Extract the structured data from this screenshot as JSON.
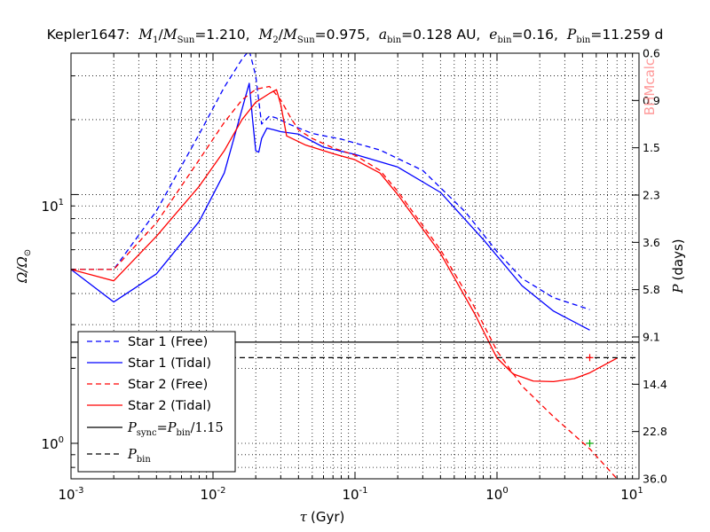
{
  "title_parts": {
    "star": "Kepler1647:",
    "m1_sym": "M",
    "m1_sub": "1",
    "m1_denom": "M",
    "m1_denom_sub": "Sun",
    "m1_val": "=1.210,",
    "m2_sym": "M",
    "m2_sub": "2",
    "m2_denom": "M",
    "m2_denom_sub": "Sun",
    "m2_val": "=0.975,",
    "a_sym": "a",
    "a_sub": "bin",
    "a_val": "=0.128 AU,",
    "e_sym": "e",
    "e_sub": "bin",
    "e_val": "=0.16,",
    "p_sym": "P",
    "p_sub": "bin",
    "p_val": "=11.259 d"
  },
  "axes": {
    "xlabel_sym": "τ",
    "xlabel_unit": "(Gyr)",
    "ylabel_main": "Ω/Ω",
    "ylabel_sub": "⊙",
    "y2label_sym": "P",
    "y2label_unit": "(days)"
  },
  "watermark": "BHMcalc",
  "legend_items": [
    {
      "label": "Star 1 (Free)",
      "color": "#0000ff",
      "dash": "6,4"
    },
    {
      "label": "Star 1 (Tidal)",
      "color": "#0000ff",
      "dash": ""
    },
    {
      "label": "Star 2 (Free)",
      "color": "#ff0000",
      "dash": "6,4"
    },
    {
      "label": "Star 2 (Tidal)",
      "color": "#ff0000",
      "dash": ""
    },
    {
      "label_sym": "P",
      "label_sub": "sync",
      "label_mid": "=",
      "label_sym2": "P",
      "label_sub2": "bin",
      "label_tail": "/1.15",
      "color": "#000000",
      "dash": ""
    },
    {
      "label_sym": "P",
      "label_sub": "bin",
      "color": "#000000",
      "dash": "6,4"
    }
  ],
  "colors": {
    "star1": "#0000ff",
    "star2": "#ff0000",
    "sync": "#000000",
    "marker_star2": "#ff0000",
    "marker_green": "#00aa00"
  },
  "chart_data": {
    "type": "line",
    "xscale": "log",
    "yscale": "log",
    "xlim": [
      0.001,
      10
    ],
    "ylim": [
      0.72,
      37
    ],
    "x_ticks": [
      "10^-3",
      "10^-2",
      "10^-1",
      "10^0",
      "10^1"
    ],
    "y_ticks": [
      "10^0",
      "10^1"
    ],
    "y2_ticks": [
      "0.6",
      "0.9",
      "1.5",
      "2.3",
      "3.6",
      "5.8",
      "9.1",
      "14.4",
      "22.8",
      "36.0"
    ],
    "grid": true,
    "legend_position": "lower-left",
    "series": [
      {
        "name": "Star 1 (Free)",
        "style": "dashed",
        "color": "#0000ff",
        "x": [
          0.001,
          0.002,
          0.004,
          0.008,
          0.012,
          0.016,
          0.018,
          0.02,
          0.022,
          0.025,
          0.028,
          0.035,
          0.05,
          0.08,
          0.15,
          0.3,
          0.6,
          1.0,
          1.5,
          2.5,
          4.5
        ],
        "y": [
          5.0,
          5.0,
          8.6,
          17.5,
          27,
          35,
          38,
          30,
          19.2,
          20.7,
          20.3,
          19.1,
          17.6,
          16.7,
          15.1,
          12.5,
          8.5,
          5.9,
          4.6,
          3.85,
          3.45
        ]
      },
      {
        "name": "Star 1 (Tidal)",
        "style": "solid",
        "color": "#0000ff",
        "x": [
          0.001,
          0.002,
          0.004,
          0.008,
          0.012,
          0.016,
          0.018,
          0.019,
          0.02,
          0.021,
          0.022,
          0.024,
          0.027,
          0.03,
          0.04,
          0.06,
          0.1,
          0.2,
          0.4,
          0.8,
          1.5,
          2.5,
          4.5
        ],
        "y": [
          5.0,
          3.7,
          4.8,
          7.8,
          12.2,
          22,
          28,
          20,
          15,
          14.8,
          16.8,
          18.5,
          18.2,
          17.9,
          17.5,
          15.5,
          14.5,
          12.9,
          10.2,
          6.6,
          4.3,
          3.4,
          2.85
        ]
      },
      {
        "name": "Star 2 (Free)",
        "style": "dashed",
        "color": "#ff0000",
        "x": [
          0.001,
          0.002,
          0.004,
          0.008,
          0.012,
          0.016,
          0.02,
          0.025,
          0.03,
          0.035,
          0.04,
          0.05,
          0.07,
          0.1,
          0.15,
          0.2,
          0.4,
          0.7,
          1.0,
          1.5,
          2.5,
          4.5,
          7.0
        ],
        "y": [
          5.0,
          5.0,
          7.7,
          13.8,
          19.5,
          24,
          26.5,
          27.2,
          24,
          20.5,
          18.2,
          16.8,
          15.4,
          14.4,
          12.5,
          10.3,
          6.0,
          3.5,
          2.35,
          1.7,
          1.28,
          0.95,
          0.72
        ]
      },
      {
        "name": "Star 2 (Tidal)",
        "style": "solid",
        "color": "#ff0000",
        "x": [
          0.001,
          0.002,
          0.004,
          0.008,
          0.012,
          0.016,
          0.02,
          0.025,
          0.028,
          0.03,
          0.033,
          0.036,
          0.045,
          0.07,
          0.1,
          0.15,
          0.2,
          0.4,
          0.7,
          1.0,
          1.3,
          1.8,
          2.5,
          3.5,
          4.5,
          7.0
        ],
        "y": [
          5.0,
          4.5,
          6.8,
          10.8,
          15.0,
          20,
          23.5,
          25.5,
          26.4,
          23,
          17.2,
          16.8,
          15.8,
          14.6,
          13.8,
          12.2,
          10.0,
          5.8,
          3.3,
          2.2,
          1.9,
          1.78,
          1.77,
          1.82,
          1.92,
          2.2
        ]
      },
      {
        "name": "Psync=Pbin/1.15",
        "style": "solid",
        "color": "#000000",
        "x": [
          0.001,
          10
        ],
        "y": [
          2.55,
          2.55
        ]
      },
      {
        "name": "Pbin",
        "style": "dashed",
        "color": "#000000",
        "x": [
          0.001,
          10
        ],
        "y": [
          2.21,
          2.21
        ]
      }
    ],
    "markers": [
      {
        "x": 4.5,
        "y": 2.21,
        "color": "#ff0000",
        "symbol": "+"
      },
      {
        "x": 4.5,
        "y": 1.0,
        "color": "#00aa00",
        "symbol": "+"
      }
    ]
  }
}
